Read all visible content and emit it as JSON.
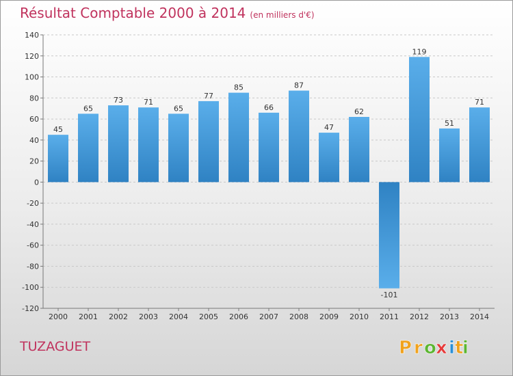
{
  "header": {
    "title": "Résultat Comptable 2000 à 2014",
    "unit": "(en milliers d'€)"
  },
  "commune": "TUZAGUET",
  "logo": {
    "text": "Proxiti",
    "letters": [
      "P",
      "r",
      "o",
      "x",
      "i",
      "t",
      "i"
    ]
  },
  "colors": {
    "title": "#c0325d",
    "bar_top": "#5aaeea",
    "bar_bottom": "#2f82c3",
    "logo_letters": [
      "#f0a21e",
      "#f0a21e",
      "#5cb531",
      "#e53a3a",
      "#2b8fd6",
      "#f0a21e",
      "#5cb531"
    ]
  },
  "chart_data": {
    "type": "bar",
    "title": "Résultat Comptable 2000 à 2014",
    "subtitle": "(en milliers d'€)",
    "xlabel": "",
    "ylabel": "",
    "categories": [
      "2000",
      "2001",
      "2002",
      "2003",
      "2004",
      "2005",
      "2006",
      "2007",
      "2008",
      "2009",
      "2010",
      "2011",
      "2012",
      "2013",
      "2014"
    ],
    "values": [
      45,
      65,
      73,
      71,
      65,
      77,
      85,
      66,
      87,
      47,
      62,
      -101,
      119,
      51,
      71
    ],
    "data_labels": [
      "45",
      "65",
      "73",
      "71",
      "65",
      "77",
      "85",
      "66",
      "87",
      "47",
      "62",
      "-101",
      "119",
      "51",
      "71"
    ],
    "ylim": [
      -120,
      140
    ],
    "yticks": [
      140,
      120,
      100,
      80,
      60,
      40,
      20,
      0,
      -20,
      -40,
      -60,
      -80,
      -100,
      -120
    ],
    "ytick_labels": [
      "140",
      "120",
      "100",
      "80",
      "60",
      "40",
      "20",
      "0",
      "-20",
      "-40",
      "-60",
      "-80",
      "-100",
      "-120"
    ],
    "grid": true,
    "legend": "none"
  }
}
